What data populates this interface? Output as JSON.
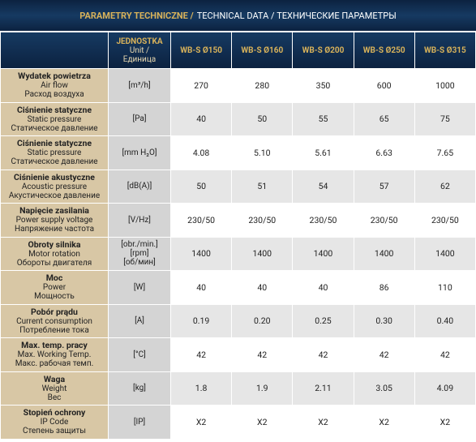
{
  "title": {
    "pl": "PARAMETRY TECHNICZNE /",
    "rest": "TECHNICAL DATA / ТЕХНИЧЕСКИЕ ПАРАМЕТРЫ"
  },
  "header": {
    "unit": [
      "JEDNOSTKA",
      "Unit /",
      "Единица"
    ],
    "models": [
      "WB-S Ø150",
      "WB-S Ø160",
      "WB-S Ø200",
      "WB-S Ø250",
      "WB-S Ø315"
    ]
  },
  "rows": [
    {
      "label": [
        "Wydatek powietrza",
        "Air flow",
        "Расход воздуха"
      ],
      "unit": [
        "[m³/h]"
      ],
      "values": [
        "270",
        "280",
        "350",
        "600",
        "1000"
      ]
    },
    {
      "label": [
        "Ciśnienie statyczne",
        "Static pressure",
        "Статическое давление"
      ],
      "unit": [
        "[Pa]"
      ],
      "values": [
        "40",
        "50",
        "55",
        "65",
        "75"
      ]
    },
    {
      "label": [
        "Ciśnienie statyczne",
        "Static pressure",
        "Статическое давление"
      ],
      "unit": [
        "[mm H₂O]"
      ],
      "values": [
        "4.08",
        "5.10",
        "5.61",
        "6.63",
        "7.65"
      ]
    },
    {
      "label": [
        "Ciśnienie akustyczne",
        "Acoustic pressure",
        "Акустическое давление"
      ],
      "unit": [
        "[dB(A)]"
      ],
      "values": [
        "50",
        "51",
        "54",
        "57",
        "62"
      ]
    },
    {
      "label": [
        "Napięcie zasilania",
        "Power supply voltage",
        "Напряжение частота"
      ],
      "unit": [
        "[V/Hz]"
      ],
      "values": [
        "230/50",
        "230/50",
        "230/50",
        "230/50",
        "230/50"
      ]
    },
    {
      "label": [
        "Obroty silnika",
        "Motor rotation",
        "Обороты двигателя"
      ],
      "unit": [
        "[obr./min.]",
        "[rpm]",
        "[об/мин]"
      ],
      "values": [
        "1400",
        "1400",
        "1400",
        "1400",
        "1400"
      ]
    },
    {
      "label": [
        "Moc",
        "Power",
        "Мощность"
      ],
      "unit": [
        "[W]"
      ],
      "values": [
        "40",
        "40",
        "40",
        "86",
        "110"
      ]
    },
    {
      "label": [
        "Pobór prądu",
        "Current consumption",
        "Потребление тока"
      ],
      "unit": [
        "[A]"
      ],
      "values": [
        "0.19",
        "0.20",
        "0.25",
        "0.30",
        "0.40"
      ]
    },
    {
      "label": [
        "Max. temp. pracy",
        "Max. Working Temp.",
        "Макс. рабочая темп."
      ],
      "unit": [
        "[°C]"
      ],
      "values": [
        "42",
        "42",
        "42",
        "42",
        "42"
      ]
    },
    {
      "label": [
        "Waga",
        "Weight",
        "Вес"
      ],
      "unit": [
        "[kg]"
      ],
      "values": [
        "1.8",
        "1.9",
        "2.11",
        "3.05",
        "4.09"
      ]
    },
    {
      "label": [
        "Stopień ochrony",
        "IP Code",
        "Степень защиты"
      ],
      "unit": [
        "[IP]"
      ],
      "values": [
        "X2",
        "X2",
        "X2",
        "X2",
        "X2"
      ]
    }
  ]
}
